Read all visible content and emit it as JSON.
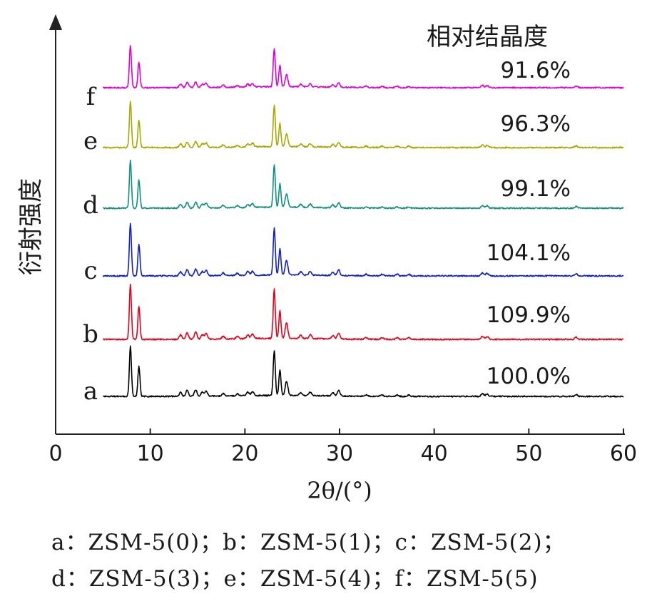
{
  "chart_data": {
    "type": "line",
    "xlabel": "2θ/(°)",
    "ylabel": "衍射强度",
    "xlim": [
      0,
      60
    ],
    "xticks": [
      0,
      10,
      20,
      30,
      40,
      50,
      60
    ],
    "crystallinity_header": "相对结晶度",
    "peaks": [
      {
        "x": 7.9,
        "h": 1.0
      },
      {
        "x": 8.8,
        "h": 0.6
      },
      {
        "x": 13.2,
        "h": 0.08
      },
      {
        "x": 13.9,
        "h": 0.12
      },
      {
        "x": 14.8,
        "h": 0.13
      },
      {
        "x": 15.5,
        "h": 0.08
      },
      {
        "x": 15.9,
        "h": 0.1
      },
      {
        "x": 17.7,
        "h": 0.05
      },
      {
        "x": 19.2,
        "h": 0.04
      },
      {
        "x": 20.3,
        "h": 0.07
      },
      {
        "x": 20.8,
        "h": 0.08
      },
      {
        "x": 23.1,
        "h": 0.9
      },
      {
        "x": 23.7,
        "h": 0.5
      },
      {
        "x": 24.4,
        "h": 0.28
      },
      {
        "x": 25.9,
        "h": 0.06
      },
      {
        "x": 26.9,
        "h": 0.07
      },
      {
        "x": 29.3,
        "h": 0.06
      },
      {
        "x": 29.9,
        "h": 0.11
      },
      {
        "x": 32.8,
        "h": 0.03
      },
      {
        "x": 34.5,
        "h": 0.03
      },
      {
        "x": 36.1,
        "h": 0.03
      },
      {
        "x": 37.3,
        "h": 0.03
      },
      {
        "x": 45.1,
        "h": 0.06
      },
      {
        "x": 45.6,
        "h": 0.05
      },
      {
        "x": 55.0,
        "h": 0.04
      }
    ],
    "series": [
      {
        "name": "a",
        "color": "#000000",
        "crystallinity": "100.0%",
        "scale": 1.0
      },
      {
        "name": "b",
        "color": "#e8001a",
        "crystallinity": "109.9%",
        "scale": 1.1
      },
      {
        "name": "c",
        "color": "#1020c8",
        "crystallinity": "104.1%",
        "scale": 1.05
      },
      {
        "name": "d",
        "color": "#10907e",
        "crystallinity": "99.1%",
        "scale": 0.95
      },
      {
        "name": "e",
        "color": "#a8a800",
        "crystallinity": "96.3%",
        "scale": 0.92
      },
      {
        "name": "f",
        "color": "#e000d8",
        "crystallinity": "91.6%",
        "scale": 0.85
      }
    ]
  },
  "legend": {
    "line1": "a：ZSM-5(0)；b：ZSM-5(1)；c：ZSM-5(2)；",
    "line2": "d：ZSM-5(3)；e：ZSM-5(4)；f：ZSM-5(5)"
  }
}
